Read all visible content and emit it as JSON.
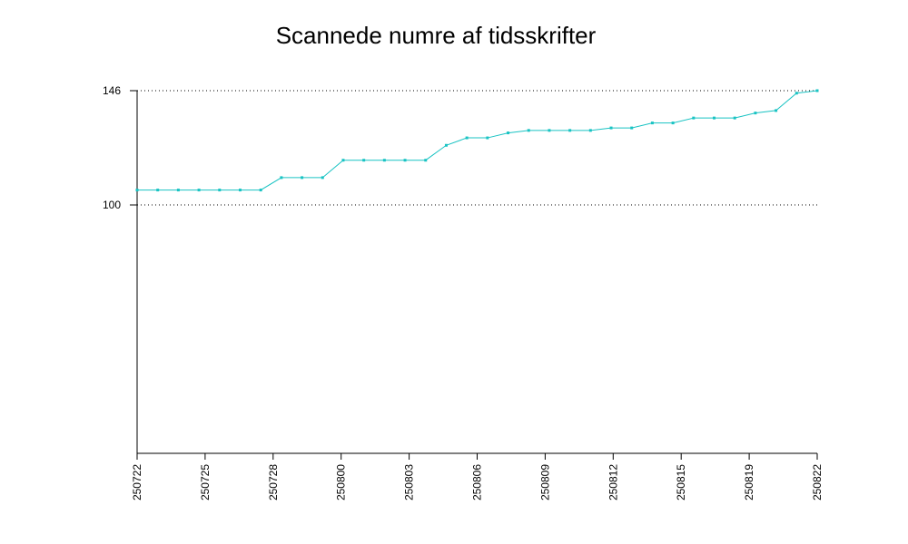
{
  "chart_data": {
    "type": "line",
    "title": "Scannede numre af tidsskrifter",
    "xlabel": "",
    "ylabel": "",
    "ylim": [
      0,
      146
    ],
    "yticks": [
      100,
      146
    ],
    "grid": "dotted horizontal at y ticks",
    "x_tick_labels": [
      "250722",
      "250725",
      "250728",
      "250800",
      "250803",
      "250806",
      "250809",
      "250812",
      "250815",
      "250819",
      "250822"
    ],
    "series": [
      {
        "color": "#19c3c3",
        "values": [
          106,
          106,
          106,
          106,
          106,
          106,
          106,
          111,
          111,
          111,
          118,
          118,
          118,
          118,
          118,
          124,
          127,
          127,
          129,
          130,
          130,
          130,
          130,
          131,
          131,
          133,
          133,
          135,
          135,
          135,
          137,
          138,
          145,
          146
        ]
      }
    ]
  }
}
